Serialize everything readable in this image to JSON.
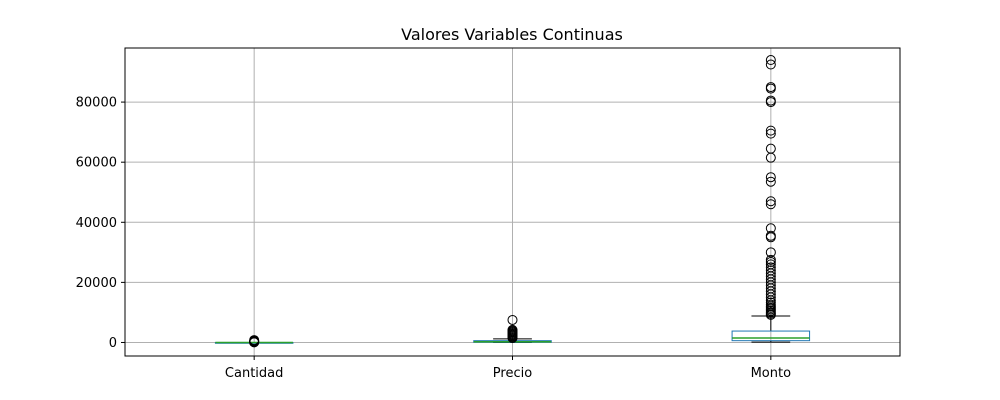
{
  "chart_data": {
    "type": "box",
    "title": "Valores Variables Continuas",
    "xlabel": "",
    "ylabel": "",
    "categories": [
      "Cantidad",
      "Precio",
      "Monto"
    ],
    "ylim": [
      -4500,
      98000
    ],
    "yticks": [
      0,
      20000,
      40000,
      60000,
      80000
    ],
    "grid": true,
    "colors": {
      "box": "#1f77b4",
      "median": "#2ca02c",
      "whisker": "#000000",
      "grid": "#b0b0b0",
      "outlier": "#000000"
    },
    "boxes": [
      {
        "name": "Cantidad",
        "whislo": 0,
        "q1": 0,
        "med": 0,
        "q3": 0,
        "whishi": 0,
        "fliers": [
          50,
          120,
          200,
          300,
          450,
          600,
          800
        ]
      },
      {
        "name": "Precio",
        "whislo": 0,
        "q1": 60,
        "med": 230,
        "q3": 600,
        "whishi": 1200,
        "fliers": [
          1500,
          1800,
          2100,
          2400,
          2700,
          3000,
          3300,
          3600,
          3900,
          4200,
          7500
        ]
      },
      {
        "name": "Monto",
        "whislo": 100,
        "q1": 600,
        "med": 1500,
        "q3": 3800,
        "whishi": 8800,
        "fliers": [
          9200,
          9600,
          10000,
          10500,
          11000,
          11500,
          12000,
          12600,
          13300,
          14000,
          15000,
          16000,
          17000,
          18000,
          19000,
          20000,
          21000,
          22000,
          23000,
          24000,
          25000,
          26000,
          26800,
          27500,
          30000,
          35000,
          35500,
          38000,
          46000,
          47000,
          53500,
          55000,
          61500,
          64500,
          69500,
          70500,
          80000,
          80500,
          84500,
          85000,
          92500,
          94000
        ]
      }
    ]
  }
}
